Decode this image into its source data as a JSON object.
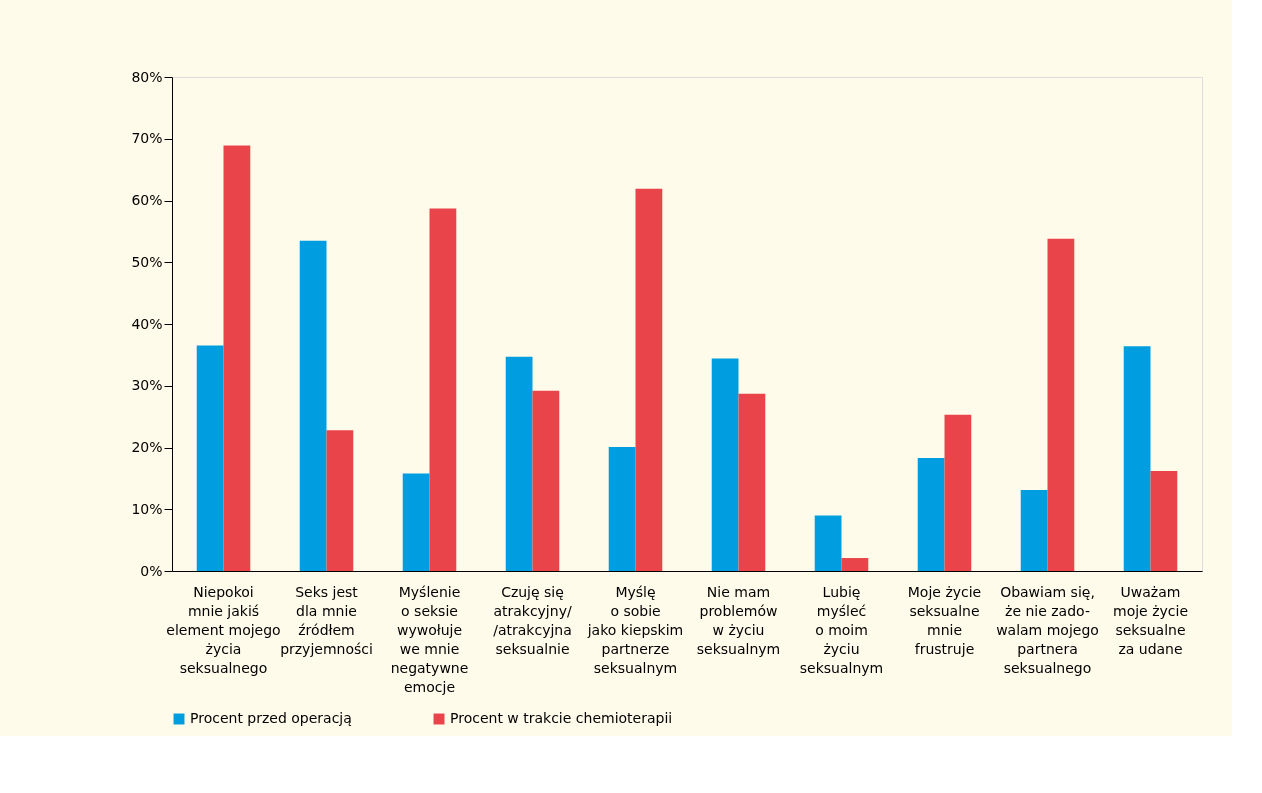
{
  "chart_data": {
    "type": "bar",
    "categories": [
      "Niepokoi\nmnie jakiś\nelement mojego\nżycia\nseksualnego",
      "Seks jest\ndla mnie\nźródłem\nprzyjemności",
      "Myślenie\no seksie\nwywołuje\nwe mnie\nnegatywne\nemocje",
      "Czuję się\natrakcyjny/\n/atrakcyjna\nseksualnie",
      "Myślę\no sobie\njako kiepskim\npartnerze\nseksualnym",
      "Nie mam\nproblemów\nw życiu\nseksualnym",
      "Lubię\nmyśleć\no moim\nżyciu\nseksualnym",
      "Moje życie\nseksualne\nmnie\nfrustruje",
      "Obawiam się,\nże nie zado-\nwalam mojego\npartnera\nseksualnego",
      "Uważam\nmoje życie\nseksualne\nza udane"
    ],
    "series": [
      {
        "name": "Procent przed operacją",
        "color": "#009ee0",
        "values": [
          36.5,
          53.5,
          15.8,
          34.7,
          20.1,
          34.4,
          9.0,
          18.3,
          13.1,
          36.4
        ]
      },
      {
        "name": "Procent w trakcie chemioterapii",
        "color": "#e8444a",
        "values": [
          68.9,
          22.8,
          58.7,
          29.2,
          61.9,
          28.7,
          2.1,
          25.3,
          53.8,
          16.2
        ]
      }
    ],
    "ylim": [
      0,
      80
    ],
    "yticks": [
      {
        "value": 0,
        "label": "0%"
      },
      {
        "value": 10,
        "label": "10%"
      },
      {
        "value": 20,
        "label": "20%"
      },
      {
        "value": 30,
        "label": "30%"
      },
      {
        "value": 40,
        "label": "40%"
      },
      {
        "value": 50,
        "label": "50%"
      },
      {
        "value": 60,
        "label": "60%"
      },
      {
        "value": 70,
        "label": "70%"
      },
      {
        "value": 80,
        "label": "80%"
      }
    ],
    "grid": false,
    "legend": "bottom"
  }
}
